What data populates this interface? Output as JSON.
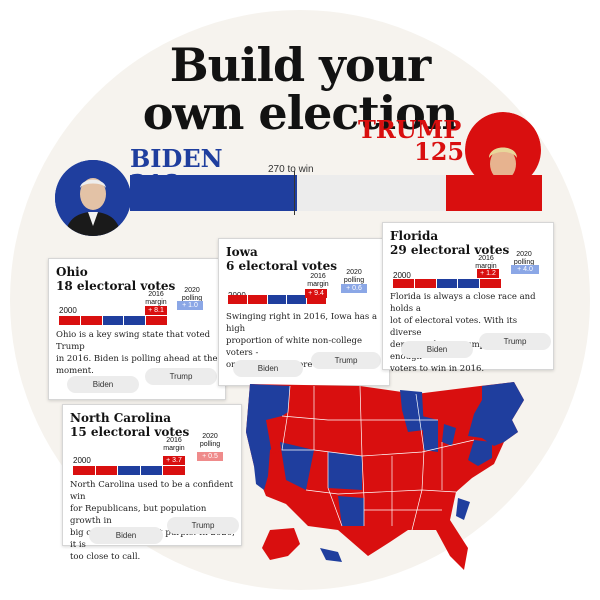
{
  "headline": {
    "line1": "Build your",
    "line2": "own election"
  },
  "biden": {
    "name": "BIDEN",
    "votes": "218",
    "color": "#1f3e9e"
  },
  "trump": {
    "name": "TRUMP",
    "votes": "125",
    "color": "#d90f0f"
  },
  "to_win": "270 to win",
  "bar": {
    "total": 538,
    "biden": 218,
    "trump": 125
  },
  "cards": {
    "ohio": {
      "title": "Ohio",
      "sub": "18 electoral votes",
      "year": "2000",
      "margin_label": [
        "2016",
        "margin"
      ],
      "polling_label": [
        "2020",
        "polling"
      ],
      "margin_value": "+ 8.1",
      "polling_value": "+ 1.0",
      "desc": [
        "Ohio is a key swing state that voted Trump",
        "in 2016. Biden is polling ahead at the",
        "moment."
      ],
      "biden_btn": "Biden",
      "trump_btn": "Trump"
    },
    "iowa": {
      "title": "Iowa",
      "sub": "6 electoral votes",
      "year": "2000",
      "margin_label": [
        "2016",
        "margin"
      ],
      "polling_label": [
        "2020",
        "polling"
      ],
      "margin_value": "+ 9.4",
      "polling_value": "+ 0.6",
      "desc": [
        "Swinging right in 2016, Iowa has a high",
        "proportion of white non-college voters -",
        "one of Trump's core demographics."
      ],
      "biden_btn": "Biden",
      "trump_btn": "Trump"
    },
    "florida": {
      "title": "Florida",
      "sub": "29 electoral votes",
      "year": "2000",
      "margin_label": [
        "2016",
        "margin"
      ],
      "polling_label": [
        "2020",
        "polling"
      ],
      "margin_value": "+ 1.2",
      "polling_value": "+ 4.0",
      "desc": [
        "Florida is always a close race and holds a",
        "lot of electoral votes. With its diverse",
        "demographics, Trump picked up enough",
        "voters to win in 2016."
      ],
      "biden_btn": "Biden",
      "trump_btn": "Trump"
    },
    "nc": {
      "title": "North Carolina",
      "sub": "15 electoral votes",
      "year": "2000",
      "margin_label": [
        "2016",
        "margin"
      ],
      "polling_label": [
        "2020",
        "polling"
      ],
      "margin_value": "+ 3.7",
      "polling_value": "+ 0.5",
      "desc": [
        "North Carolina used to be a confident win",
        "for Republicans, but population growth in",
        "big cities is turning it purple. In 2020, it is",
        "too close to call."
      ],
      "biden_btn": "Biden",
      "trump_btn": "Trump"
    }
  }
}
